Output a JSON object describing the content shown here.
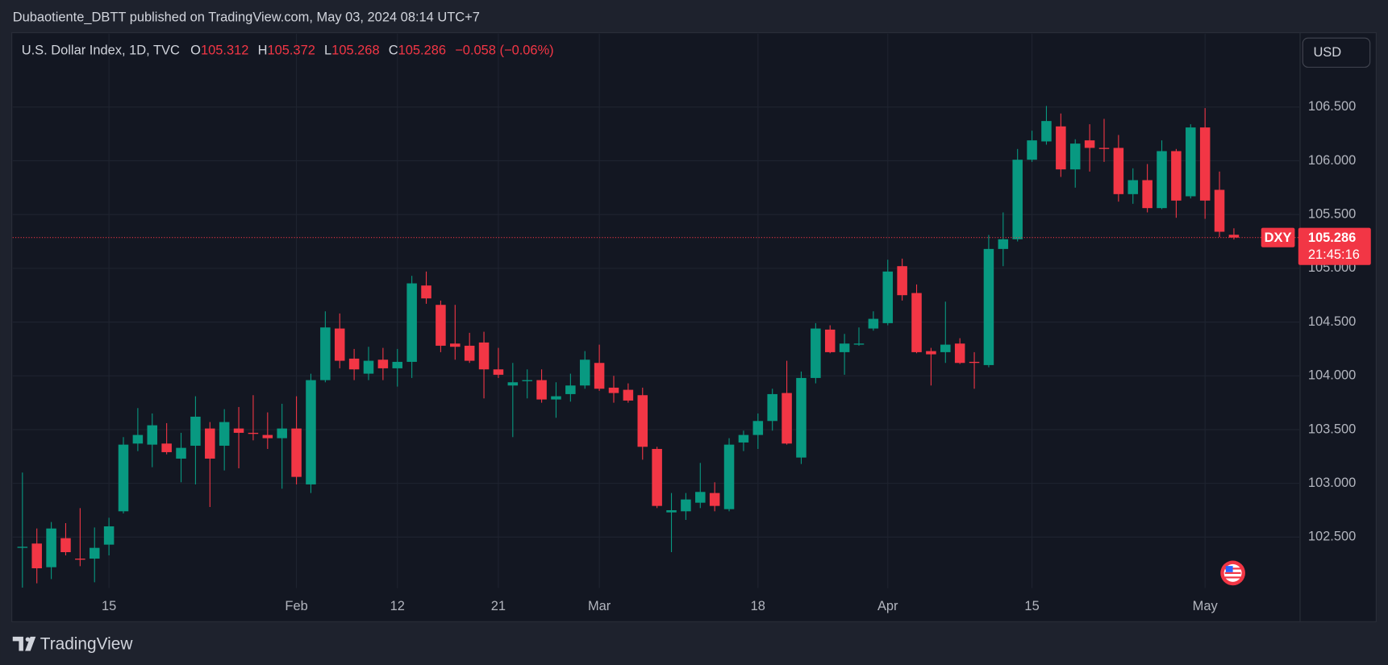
{
  "header": {
    "published": "Dubaotiente_DBTT published on TradingView.com, May 03, 2024 08:14 UTC+7"
  },
  "footer": {
    "brand": "TradingView"
  },
  "chart_data": {
    "type": "candlestick",
    "symbol_title": "U.S. Dollar Index, 1D, TVC",
    "legend": {
      "open_label": "O",
      "high_label": "H",
      "low_label": "L",
      "close_label": "C",
      "change": "−0.058 (−0.06%)"
    },
    "currency": "USD",
    "ticker": "DXY",
    "countdown": "21:45:16",
    "categories": [
      null,
      null,
      null,
      null,
      null,
      null,
      "15",
      null,
      null,
      null,
      null,
      null,
      null,
      null,
      null,
      null,
      null,
      null,
      null,
      "Feb",
      null,
      null,
      null,
      null,
      null,
      null,
      "12",
      null,
      null,
      null,
      null,
      null,
      null,
      "21",
      null,
      null,
      null,
      null,
      null,
      null,
      "Mar",
      null,
      null,
      null,
      null,
      null,
      null,
      null,
      null,
      null,
      null,
      "18",
      null,
      null,
      null,
      null,
      null,
      null,
      null,
      null,
      "Apr",
      null,
      null,
      null,
      null,
      null,
      null,
      null,
      null,
      null,
      "15",
      null,
      null,
      null,
      null,
      null,
      null,
      null,
      null,
      null,
      null,
      null,
      "May",
      null,
      null
    ],
    "open": [
      102.4,
      102.44,
      102.22,
      102.49,
      102.3,
      102.3,
      102.43,
      102.74,
      103.37,
      103.36,
      103.37,
      103.23,
      103.35,
      103.51,
      103.35,
      103.51,
      103.47,
      103.45,
      103.42,
      103.51,
      102.99,
      103.96,
      104.44,
      104.16,
      104.02,
      104.15,
      104.07,
      104.13,
      104.84,
      104.66,
      104.3,
      104.28,
      104.31,
      104.06,
      103.91,
      103.95,
      103.96,
      103.78,
      103.83,
      103.91,
      104.12,
      103.89,
      103.87,
      103.82,
      103.32,
      102.73,
      102.74,
      102.82,
      102.91,
      102.76,
      103.38,
      103.45,
      103.58,
      103.84,
      103.24,
      103.98,
      104.43,
      104.22,
      104.29,
      104.44,
      104.49,
      105.02,
      104.77,
      104.23,
      104.22,
      104.3,
      104.13,
      104.1,
      105.18,
      105.27,
      106.01,
      106.18,
      106.32,
      105.92,
      106.19,
      106.12,
      106.12,
      105.69,
      105.82,
      105.56,
      106.09,
      105.67,
      106.31,
      105.73,
      105.312
    ],
    "high": [
      103.1,
      102.58,
      102.64,
      102.63,
      102.77,
      102.59,
      102.68,
      103.43,
      103.7,
      103.65,
      103.56,
      103.47,
      103.81,
      103.57,
      103.69,
      103.71,
      103.82,
      103.66,
      103.74,
      103.81,
      104.02,
      104.6,
      104.58,
      104.25,
      104.27,
      104.26,
      104.25,
      104.93,
      104.97,
      104.7,
      104.66,
      104.4,
      104.41,
      104.26,
      104.12,
      104.06,
      104.06,
      103.94,
      104.02,
      104.23,
      104.29,
      104.0,
      103.93,
      103.89,
      103.34,
      102.91,
      102.91,
      103.19,
      103.01,
      103.42,
      103.49,
      103.65,
      103.88,
      104.14,
      104.04,
      104.49,
      104.47,
      104.39,
      104.45,
      104.6,
      105.08,
      105.09,
      104.85,
      104.26,
      104.69,
      104.35,
      104.22,
      105.31,
      105.52,
      106.11,
      106.28,
      106.51,
      106.44,
      106.2,
      106.34,
      106.39,
      106.24,
      105.93,
      105.97,
      106.19,
      106.11,
      106.34,
      106.49,
      105.9,
      105.372
    ],
    "low": [
      102.03,
      102.07,
      102.11,
      102.33,
      102.23,
      102.08,
      102.33,
      102.72,
      103.3,
      103.15,
      103.27,
      103.01,
      102.99,
      102.78,
      103.12,
      103.14,
      103.4,
      103.32,
      102.95,
      102.99,
      102.91,
      103.94,
      104.07,
      103.96,
      103.96,
      103.96,
      103.9,
      103.98,
      104.67,
      104.22,
      104.15,
      104.12,
      103.79,
      103.98,
      103.43,
      103.79,
      103.75,
      103.61,
      103.76,
      103.88,
      103.86,
      103.75,
      103.75,
      103.22,
      102.77,
      102.36,
      102.66,
      102.77,
      102.74,
      102.74,
      103.3,
      103.32,
      103.49,
      103.36,
      103.18,
      103.93,
      104.21,
      104.01,
      104.28,
      104.42,
      104.47,
      104.7,
      104.21,
      103.91,
      104.12,
      104.11,
      103.88,
      104.08,
      105.02,
      105.25,
      105.99,
      106.15,
      105.85,
      105.75,
      105.9,
      105.99,
      105.62,
      105.6,
      105.52,
      105.55,
      105.47,
      105.65,
      105.46,
      105.29,
      105.268
    ],
    "close": [
      102.41,
      102.21,
      102.58,
      102.36,
      102.29,
      102.4,
      102.6,
      103.36,
      103.45,
      103.54,
      103.29,
      103.33,
      103.62,
      103.23,
      103.57,
      103.47,
      103.46,
      103.42,
      103.51,
      103.06,
      103.96,
      104.45,
      104.14,
      104.06,
      104.14,
      104.07,
      104.13,
      104.86,
      104.72,
      104.28,
      104.27,
      104.14,
      104.06,
      104.01,
      103.94,
      103.96,
      103.78,
      103.81,
      103.91,
      104.15,
      103.88,
      103.84,
      103.77,
      103.34,
      102.79,
      102.75,
      102.85,
      102.92,
      102.79,
      103.36,
      103.45,
      103.58,
      103.83,
      103.37,
      103.98,
      104.44,
      104.22,
      104.3,
      104.3,
      104.53,
      104.97,
      104.75,
      104.22,
      104.2,
      104.29,
      104.12,
      104.12,
      105.18,
      105.27,
      106.01,
      106.19,
      106.37,
      105.92,
      106.16,
      106.12,
      106.11,
      105.69,
      105.82,
      105.56,
      106.09,
      105.63,
      106.31,
      105.63,
      105.34,
      105.286
    ],
    "up_color": "#089981",
    "down_color": "#f23645",
    "ylim": [
      102.026,
      107.183
    ],
    "yticks": [
      {
        "value": 102.5,
        "label": "102.500"
      },
      {
        "value": 103,
        "label": "103.000"
      },
      {
        "value": 103.5,
        "label": "103.500"
      },
      {
        "value": 104,
        "label": "104.000"
      },
      {
        "value": 104.5,
        "label": "104.500"
      },
      {
        "value": 105,
        "label": "105.000"
      },
      {
        "value": 105.5,
        "label": "105.500"
      },
      {
        "value": 106,
        "label": "106.000"
      },
      {
        "value": 106.5,
        "label": "106.500"
      }
    ],
    "grid": true
  }
}
